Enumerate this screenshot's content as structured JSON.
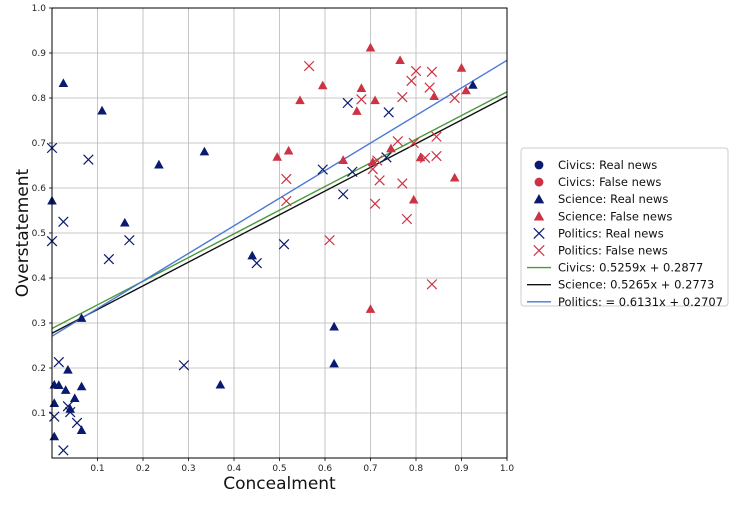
{
  "chart_data": {
    "type": "scatter",
    "xlabel": "Concealment",
    "ylabel": "Overstatement",
    "xlim": [
      0,
      1
    ],
    "ylim": [
      0,
      1
    ],
    "x_ticks": [
      "0.1",
      "0.2",
      "0.3",
      "0.4",
      "0.5",
      "0.6",
      "0.7",
      "0.8",
      "0.9",
      "1.0"
    ],
    "y_ticks": [
      "0.1",
      "0.2",
      "0.3",
      "0.4",
      "0.5",
      "0.6",
      "0.7",
      "0.8",
      "0.9",
      "1.0"
    ],
    "grid": true,
    "legend_position": "right",
    "colors": {
      "real": "#0a1a6e",
      "false": "#cc3344",
      "civics_fit": "#4a9a3a",
      "science_fit": "#111111",
      "politics_fit": "#4a78d8"
    },
    "series": [
      {
        "name": "Civics: Real news",
        "marker": "circle",
        "color": "#0a1a6e",
        "points": []
      },
      {
        "name": "Civics: False news",
        "marker": "circle",
        "color": "#cc3344",
        "points": []
      },
      {
        "name": "Science: Real news",
        "marker": "triangle",
        "color": "#0a1a6e",
        "points": [
          [
            0.025,
            0.833
          ],
          [
            0.11,
            0.772
          ],
          [
            0.235,
            0.652
          ],
          [
            0.335,
            0.681
          ],
          [
            0.16,
            0.523
          ],
          [
            0.0,
            0.572
          ],
          [
            0.44,
            0.45
          ],
          [
            0.065,
            0.311
          ],
          [
            0.005,
            0.163
          ],
          [
            0.015,
            0.162
          ],
          [
            0.035,
            0.196
          ],
          [
            0.005,
            0.122
          ],
          [
            0.03,
            0.151
          ],
          [
            0.065,
            0.159
          ],
          [
            0.05,
            0.133
          ],
          [
            0.04,
            0.109
          ],
          [
            0.065,
            0.062
          ],
          [
            0.005,
            0.048
          ],
          [
            0.37,
            0.163
          ],
          [
            0.62,
            0.292
          ],
          [
            0.62,
            0.21
          ],
          [
            0.925,
            0.829
          ]
        ]
      },
      {
        "name": "Science: False news",
        "marker": "triangle",
        "color": "#cc3344",
        "points": [
          [
            0.7,
            0.912
          ],
          [
            0.765,
            0.884
          ],
          [
            0.9,
            0.867
          ],
          [
            0.595,
            0.828
          ],
          [
            0.68,
            0.822
          ],
          [
            0.545,
            0.795
          ],
          [
            0.71,
            0.795
          ],
          [
            0.67,
            0.771
          ],
          [
            0.91,
            0.817
          ],
          [
            0.84,
            0.804
          ],
          [
            0.495,
            0.669
          ],
          [
            0.52,
            0.683
          ],
          [
            0.81,
            0.668
          ],
          [
            0.705,
            0.658
          ],
          [
            0.745,
            0.688
          ],
          [
            0.885,
            0.623
          ],
          [
            0.795,
            0.574
          ],
          [
            0.7,
            0.331
          ],
          [
            0.64,
            0.662
          ]
        ]
      },
      {
        "name": "Politics: Real news",
        "marker": "x",
        "color": "#0a1a6e",
        "points": [
          [
            0.0,
            0.689
          ],
          [
            0.08,
            0.663
          ],
          [
            0.025,
            0.525
          ],
          [
            0.0,
            0.482
          ],
          [
            0.17,
            0.484
          ],
          [
            0.125,
            0.442
          ],
          [
            0.65,
            0.789
          ],
          [
            0.74,
            0.768
          ],
          [
            0.595,
            0.641
          ],
          [
            0.66,
            0.636
          ],
          [
            0.64,
            0.586
          ],
          [
            0.735,
            0.668
          ],
          [
            0.51,
            0.475
          ],
          [
            0.45,
            0.433
          ],
          [
            0.29,
            0.206
          ],
          [
            0.015,
            0.213
          ],
          [
            0.035,
            0.115
          ],
          [
            0.04,
            0.102
          ],
          [
            0.055,
            0.078
          ],
          [
            0.005,
            0.092
          ],
          [
            0.025,
            0.017
          ]
        ]
      },
      {
        "name": "Politics: False news",
        "marker": "x",
        "color": "#cc3344",
        "points": [
          [
            0.565,
            0.871
          ],
          [
            0.835,
            0.858
          ],
          [
            0.8,
            0.86
          ],
          [
            0.79,
            0.838
          ],
          [
            0.83,
            0.823
          ],
          [
            0.68,
            0.797
          ],
          [
            0.77,
            0.802
          ],
          [
            0.885,
            0.8
          ],
          [
            0.845,
            0.714
          ],
          [
            0.76,
            0.704
          ],
          [
            0.795,
            0.7
          ],
          [
            0.82,
            0.667
          ],
          [
            0.845,
            0.671
          ],
          [
            0.715,
            0.661
          ],
          [
            0.705,
            0.642
          ],
          [
            0.72,
            0.617
          ],
          [
            0.515,
            0.62
          ],
          [
            0.77,
            0.61
          ],
          [
            0.515,
            0.571
          ],
          [
            0.71,
            0.565
          ],
          [
            0.78,
            0.531
          ],
          [
            0.61,
            0.484
          ],
          [
            0.835,
            0.386
          ]
        ]
      }
    ],
    "fit_lines": [
      {
        "name": "Civics: 0.5259x + 0.2877",
        "slope": 0.5259,
        "intercept": 0.2877,
        "color": "#4a9a3a"
      },
      {
        "name": "Science: 0.5265x + 0.2773",
        "slope": 0.5265,
        "intercept": 0.2773,
        "color": "#111111"
      },
      {
        "name": "Politics: = 0.6131x + 0.2707",
        "slope": 0.6131,
        "intercept": 0.2707,
        "color": "#4a78d8"
      }
    ]
  }
}
